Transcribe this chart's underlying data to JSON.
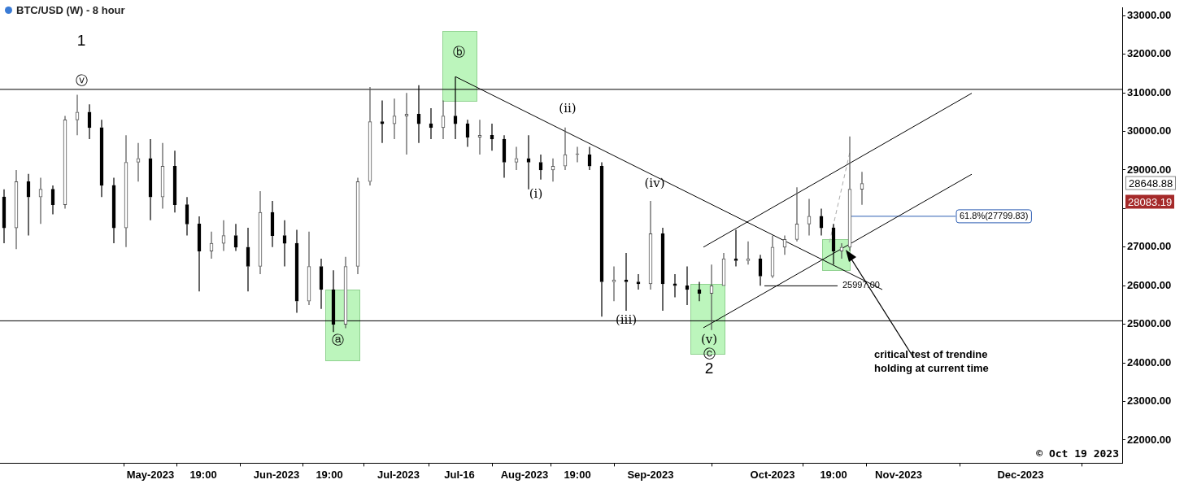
{
  "chart_data": {
    "type": "candlestick",
    "title": "BTC/USD (W) - 8 hour",
    "colors": [
      "#000000",
      "#555555",
      "#000000",
      "#555555",
      "#000000",
      "#555555",
      "#555555",
      "#000000",
      "#000000",
      "#000000",
      "#555555",
      "#555555",
      "#000000",
      "#555555",
      "#000000",
      "#000000",
      "#000000",
      "#555555",
      "#555555",
      "#000000",
      "#000000",
      "#555555",
      "#000000",
      "#000000",
      "#000000",
      "#555555",
      "#000000",
      "#000000",
      "#555555",
      "#555555",
      "#555555",
      "#000000",
      "#555555",
      "#555555",
      "#000000",
      "#000000",
      "#555555",
      "#000000",
      "#000000",
      "#555555",
      "#000000",
      "#000000",
      "#555555",
      "#000000",
      "#000000",
      "#555555",
      "#555555",
      "#555555",
      "#000000",
      "#000000",
      "#555555",
      "#000000",
      "#000000",
      "#555555",
      "#000000",
      "#000000",
      "#000000",
      "#000000",
      "#555555",
      "#555555",
      "#000000",
      "#555555",
      "#000000",
      "#555555",
      "#555555",
      "#555555",
      "#555555",
      "#000000",
      "#000000",
      "#555555",
      "#555555",
      "#555555"
    ],
    "x": [
      "2023-03-26",
      "2023-03-29",
      "2023-04-01",
      "2023-04-04",
      "2023-04-07",
      "2023-04-10",
      "2023-04-13",
      "2023-04-16",
      "2023-04-19",
      "2023-04-22",
      "2023-04-25",
      "2023-04-28",
      "2023-05-01",
      "2023-05-04",
      "2023-05-07",
      "2023-05-10",
      "2023-05-13",
      "2023-05-16",
      "2023-05-19",
      "2023-05-22",
      "2023-05-25",
      "2023-05-28",
      "2023-05-31",
      "2023-06-03",
      "2023-06-06",
      "2023-06-09",
      "2023-06-12",
      "2023-06-15",
      "2023-06-18",
      "2023-06-21",
      "2023-06-24",
      "2023-06-27",
      "2023-06-30",
      "2023-07-03",
      "2023-07-06",
      "2023-07-09",
      "2023-07-12",
      "2023-07-15",
      "2023-07-18",
      "2023-07-21",
      "2023-07-24",
      "2023-07-27",
      "2023-07-30",
      "2023-08-02",
      "2023-08-05",
      "2023-08-08",
      "2023-08-11",
      "2023-08-14",
      "2023-08-17",
      "2023-08-20",
      "2023-08-23",
      "2023-08-26",
      "2023-08-29",
      "2023-09-01",
      "2023-09-04",
      "2023-09-07",
      "2023-09-10",
      "2023-09-13",
      "2023-09-16",
      "2023-09-19",
      "2023-09-22",
      "2023-09-25",
      "2023-09-28",
      "2023-10-01",
      "2023-10-04",
      "2023-10-07",
      "2023-10-10",
      "2023-10-13",
      "2023-10-16",
      "2023-10-18",
      "2023-10-20",
      "2023-10-23"
    ],
    "ohlc": [
      [
        28300,
        28500,
        27100,
        27500
      ],
      [
        27500,
        29000,
        26950,
        28700
      ],
      [
        28700,
        28900,
        27300,
        28300
      ],
      [
        28300,
        28800,
        27600,
        28500
      ],
      [
        28500,
        28600,
        27850,
        28100
      ],
      [
        28100,
        30400,
        28000,
        30300
      ],
      [
        30300,
        30950,
        29900,
        30500
      ],
      [
        30500,
        30700,
        29800,
        30100
      ],
      [
        30100,
        30300,
        28300,
        28600
      ],
      [
        28600,
        28800,
        27100,
        27500
      ],
      [
        27500,
        29900,
        27000,
        29200
      ],
      [
        29200,
        29700,
        28700,
        29300
      ],
      [
        29300,
        29800,
        27700,
        28300
      ],
      [
        28300,
        29700,
        28000,
        29100
      ],
      [
        29100,
        29500,
        27900,
        28100
      ],
      [
        28100,
        28300,
        27300,
        27600
      ],
      [
        27600,
        27800,
        25850,
        26900
      ],
      [
        26900,
        27400,
        26700,
        27100
      ],
      [
        27100,
        27700,
        26900,
        27300
      ],
      [
        27300,
        27600,
        26900,
        27000
      ],
      [
        27000,
        27500,
        25850,
        26500
      ],
      [
        26500,
        28450,
        26300,
        27900
      ],
      [
        27900,
        28200,
        27000,
        27300
      ],
      [
        27300,
        27700,
        26500,
        27100
      ],
      [
        27100,
        27450,
        25300,
        25600
      ],
      [
        25600,
        27400,
        25500,
        26500
      ],
      [
        26500,
        26700,
        25400,
        25900
      ],
      [
        25900,
        26400,
        24800,
        25000
      ],
      [
        25000,
        26750,
        24900,
        26500
      ],
      [
        26500,
        28800,
        26300,
        28700
      ],
      [
        28700,
        31150,
        28600,
        30250
      ],
      [
        30250,
        30800,
        29700,
        30200
      ],
      [
        30200,
        30850,
        29800,
        30400
      ],
      [
        30400,
        31000,
        29400,
        30450
      ],
      [
        30450,
        31200,
        29700,
        30200
      ],
      [
        30200,
        30600,
        29800,
        30100
      ],
      [
        30100,
        30800,
        29800,
        30400
      ],
      [
        30400,
        31420,
        29800,
        30200
      ],
      [
        30200,
        30300,
        29600,
        29850
      ],
      [
        29850,
        30300,
        29400,
        29900
      ],
      [
        29900,
        30200,
        29500,
        29800
      ],
      [
        29800,
        29900,
        28800,
        29200
      ],
      [
        29200,
        29600,
        29000,
        29300
      ],
      [
        29300,
        29900,
        28500,
        29200
      ],
      [
        29200,
        29400,
        28750,
        29000
      ],
      [
        29000,
        29300,
        28700,
        29100
      ],
      [
        29100,
        30100,
        29000,
        29400
      ],
      [
        29400,
        29600,
        29200,
        29400
      ],
      [
        29400,
        29600,
        29000,
        29100
      ],
      [
        29100,
        29200,
        25200,
        26100
      ],
      [
        26100,
        26500,
        25600,
        26150
      ],
      [
        26150,
        26850,
        25350,
        26100
      ],
      [
        26100,
        26300,
        25900,
        26050
      ],
      [
        26050,
        28200,
        25900,
        27350
      ],
      [
        27350,
        27500,
        25350,
        26050
      ],
      [
        26050,
        26300,
        25700,
        26000
      ],
      [
        26000,
        26500,
        25500,
        25900
      ],
      [
        25900,
        26100,
        25600,
        25800
      ],
      [
        25800,
        26550,
        24850,
        26000
      ],
      [
        26000,
        26850,
        26000,
        26700
      ],
      [
        26700,
        27450,
        26500,
        26650
      ],
      [
        26650,
        27150,
        26550,
        26700
      ],
      [
        26700,
        26800,
        26000,
        26250
      ],
      [
        26250,
        27300,
        26200,
        27000
      ],
      [
        27000,
        27300,
        26800,
        27200
      ],
      [
        27200,
        28550,
        27150,
        27600
      ],
      [
        27600,
        28250,
        27300,
        27800
      ],
      [
        27800,
        28000,
        27300,
        27500
      ],
      [
        27500,
        27600,
        26550,
        26900
      ],
      [
        26900,
        27100,
        26700,
        27000
      ],
      [
        27000,
        29870,
        26900,
        28500
      ],
      [
        28500,
        28950,
        28100,
        28648.88
      ]
    ],
    "series": [
      {
        "type": "line",
        "x": [
          "2023-07-15",
          "2023-10-28"
        ],
        "values": [
          31420,
          25900
        ],
        "color": "#000000"
      },
      {
        "type": "line",
        "x": [
          "2023-09-14",
          "2023-11-19"
        ],
        "values": [
          27000,
          30990
        ],
        "color": "#000000"
      },
      {
        "type": "line",
        "x": [
          "2023-09-14",
          "2023-11-19"
        ],
        "values": [
          24910,
          28890
        ],
        "color": "#000000"
      },
      {
        "type": "line",
        "x": [
          "2023-09-29",
          "2023-10-17"
        ],
        "values": [
          25997,
          25997
        ],
        "color": "#000000"
      },
      {
        "type": "line",
        "x": [
          "2023-10-20",
          "2023-11-15"
        ],
        "values": [
          27799.83,
          27799.83
        ],
        "color": "#2f5fb3"
      },
      {
        "type": "line",
        "x": [
          "2023-10-15",
          "2023-10-20"
        ],
        "values": [
          27120,
          29460
        ],
        "color": "#aaaaaa",
        "line_style": "dashed"
      }
    ],
    "ref_lines": [
      {
        "axis": "y",
        "value": 31090,
        "color": "#000000"
      },
      {
        "axis": "y",
        "value": 25090,
        "color": "#000000"
      }
    ],
    "xlim": [
      "2023-03-25",
      "2023-12-26"
    ],
    "xticks": [
      {
        "value": "2023-05-01",
        "label": "May-2023"
      },
      {
        "value": "2023-05-14",
        "label": "19:00"
      },
      {
        "value": "2023-06-01",
        "label": "Jun-2023"
      },
      {
        "value": "2023-06-14",
        "label": "19:00"
      },
      {
        "value": "2023-07-01",
        "label": "Jul-2023"
      },
      {
        "value": "2023-07-16",
        "label": "Jul-16"
      },
      {
        "value": "2023-08-01",
        "label": "Aug-2023"
      },
      {
        "value": "2023-08-14",
        "label": "19:00"
      },
      {
        "value": "2023-09-01",
        "label": "Sep-2023"
      },
      {
        "value": "2023-10-01",
        "label": "Oct-2023"
      },
      {
        "value": "2023-10-16",
        "label": "19:00"
      },
      {
        "value": "2023-11-01",
        "label": "Nov-2023"
      },
      {
        "value": "2023-12-01",
        "label": "Dec-2023"
      }
    ],
    "ylim": [
      21400,
      33200
    ],
    "yticks": [
      {
        "value": 22000,
        "label": "22000.00"
      },
      {
        "value": 23000,
        "label": "23000.00"
      },
      {
        "value": 24000,
        "label": "24000.00"
      },
      {
        "value": 25000,
        "label": "25000.00"
      },
      {
        "value": 26000,
        "label": "26000.00"
      },
      {
        "value": 27000,
        "label": "27000.00"
      },
      {
        "value": 28000,
        "label": null
      },
      {
        "value": 29000,
        "label": "29000.00"
      },
      {
        "value": 30000,
        "label": "30000.00"
      },
      {
        "value": 31000,
        "label": "31000.00"
      },
      {
        "value": 32000,
        "label": "32000.00"
      },
      {
        "value": 33000,
        "label": "33000.00"
      }
    ],
    "annotations": [
      "1",
      "ⓥ",
      "ⓐ",
      "ⓑ",
      "(i)",
      "(ii)",
      "(iii)",
      "(iv)",
      "(v)",
      "ⓒ",
      "2",
      "28648.88",
      "28083.19",
      {
        "text": "25997.00",
        "x": "2023-10-17",
        "y": 25997
      },
      {
        "text": "61.8%(27799.83)",
        "x": "2023-11-15",
        "y": 27799.83
      },
      "critical test of trendine holding at current time",
      "© Oct 19 2023"
    ]
  }
}
